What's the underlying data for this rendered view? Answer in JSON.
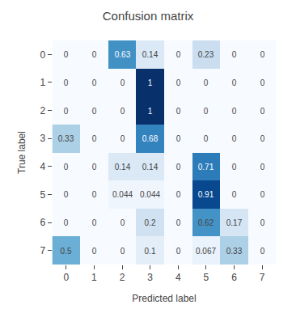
{
  "chart_data": {
    "type": "heatmap",
    "title": "Confusion matrix",
    "xlabel": "Predicted label",
    "ylabel": "True label",
    "x_categories": [
      "0",
      "1",
      "2",
      "3",
      "4",
      "5",
      "6",
      "7"
    ],
    "y_categories": [
      "0",
      "1",
      "2",
      "3",
      "4",
      "5",
      "6",
      "7"
    ],
    "matrix": [
      [
        0,
        0,
        0.63,
        0.14,
        0,
        0.23,
        0,
        0
      ],
      [
        0,
        0,
        0,
        1,
        0,
        0,
        0,
        0
      ],
      [
        0,
        0,
        0,
        1,
        0,
        0,
        0,
        0
      ],
      [
        0.33,
        0,
        0,
        0.68,
        0,
        0,
        0,
        0
      ],
      [
        0,
        0,
        0.14,
        0.14,
        0,
        0.71,
        0,
        0
      ],
      [
        0,
        0,
        0.044,
        0.044,
        0,
        0.91,
        0,
        0
      ],
      [
        0,
        0,
        0,
        0.2,
        0,
        0.62,
        0.17,
        0
      ],
      [
        0.5,
        0,
        0,
        0.1,
        0,
        0.067,
        0.33,
        0
      ]
    ],
    "zlim": [
      0,
      1
    ],
    "color": "Blues",
    "data_labels": true,
    "grid": false
  }
}
